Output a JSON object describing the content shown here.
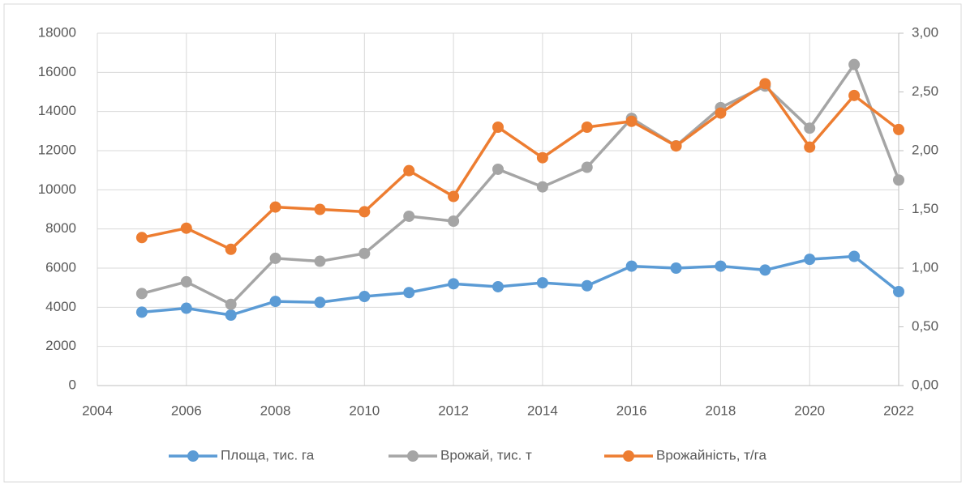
{
  "chart_data": {
    "type": "line",
    "x": [
      2005,
      2006,
      2007,
      2008,
      2009,
      2010,
      2011,
      2012,
      2013,
      2014,
      2015,
      2016,
      2017,
      2018,
      2019,
      2020,
      2021,
      2022
    ],
    "series": [
      {
        "name": "Площа, тис. га",
        "color": "#5b9bd5",
        "values": [
          3750,
          3950,
          3600,
          4300,
          4250,
          4550,
          4750,
          5200,
          5050,
          5250,
          5100,
          6100,
          6000,
          6100,
          5900,
          6450,
          6600,
          4800
        ]
      },
      {
        "name": "Врожай, тис. т",
        "color": "#a5a5a5",
        "values": [
          4700,
          5300,
          4150,
          6500,
          6350,
          6750,
          8650,
          8400,
          11050,
          10150,
          11150,
          13650,
          12250,
          14200,
          15300,
          13150,
          16400,
          10500
        ]
      },
      {
        "name": "Врожайність, т/га",
        "color": "#ed7d31",
        "axis": "y2",
        "values": [
          1.26,
          1.34,
          1.16,
          1.52,
          1.5,
          1.48,
          1.83,
          1.61,
          2.2,
          1.94,
          2.2,
          2.25,
          2.04,
          2.32,
          2.57,
          2.03,
          2.47,
          2.18
        ]
      }
    ],
    "xlim": [
      2004,
      2022
    ],
    "xticks": [
      2004,
      2006,
      2008,
      2010,
      2012,
      2014,
      2016,
      2018,
      2020,
      2022
    ],
    "ylim": [
      0,
      18000
    ],
    "yticks": [
      0,
      2000,
      4000,
      6000,
      8000,
      10000,
      12000,
      14000,
      16000,
      18000
    ],
    "y2lim": [
      0,
      3
    ],
    "y2ticks": [
      {
        "value": 0,
        "label": "0,00"
      },
      {
        "value": 0.5,
        "label": "0,50"
      },
      {
        "value": 1,
        "label": "1,00"
      },
      {
        "value": 1.5,
        "label": "1,50"
      },
      {
        "value": 2,
        "label": "2,00"
      },
      {
        "value": 2.5,
        "label": "2,50"
      },
      {
        "value": 3,
        "label": "3,00"
      }
    ],
    "grid": true,
    "legend": "bottom"
  }
}
